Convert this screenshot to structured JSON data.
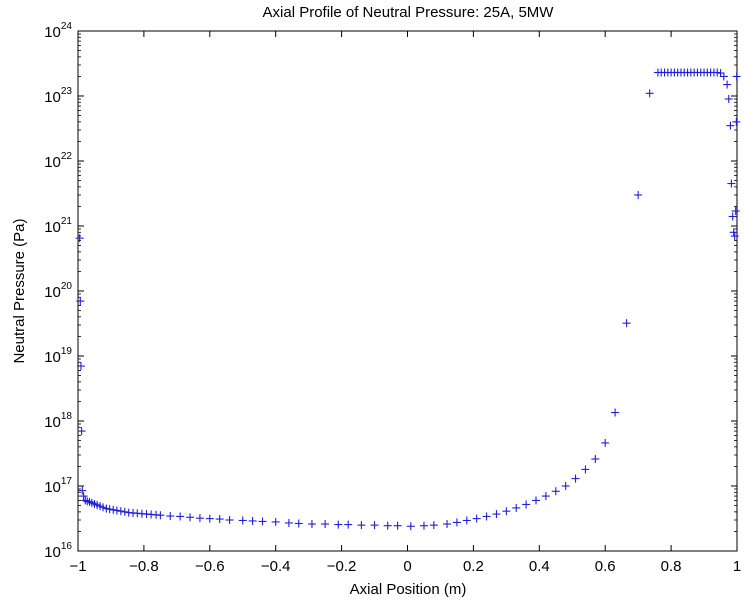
{
  "chart_data": {
    "type": "scatter",
    "title": "Axial Profile of Neutral Pressure: 25A, 5MW",
    "xlabel": "Axial Position (m)",
    "ylabel": "Neutral Pressure (Pa)",
    "xlim": [
      -1,
      1
    ],
    "ylim": [
      1e+16,
      1e+24
    ],
    "yscale": "log",
    "grid": false,
    "marker": "+",
    "marker_color": "#1f1fd8",
    "x_ticks": [
      -1,
      -0.8,
      -0.6,
      -0.4,
      -0.2,
      0,
      0.2,
      0.4,
      0.6,
      0.8,
      1
    ],
    "x_tick_labels": [
      "−1",
      "−0.8",
      "−0.6",
      "−0.4",
      "−0.2",
      "0",
      "0.2",
      "0.4",
      "0.6",
      "0.8",
      "1"
    ],
    "y_tick_exponents": [
      16,
      17,
      18,
      19,
      20,
      21,
      22,
      23,
      24
    ],
    "y_tick_base": "10",
    "series": [
      {
        "points": [
          [
            -0.995,
            6.5e+20
          ],
          [
            -0.993,
            7e+19
          ],
          [
            -0.991,
            7e+18
          ],
          [
            -0.989,
            7e+17
          ],
          [
            -0.987,
            8.5e+16
          ],
          [
            -0.983,
            7e+16
          ],
          [
            -0.978,
            6e+16
          ],
          [
            -0.972,
            5.8e+16
          ],
          [
            -0.965,
            5.7e+16
          ],
          [
            -0.958,
            5.5e+16
          ],
          [
            -0.95,
            5.3e+16
          ],
          [
            -0.942,
            5.1e+16
          ],
          [
            -0.933,
            4.9e+16
          ],
          [
            -0.924,
            4.7e+16
          ],
          [
            -0.914,
            4.5e+16
          ],
          [
            -0.904,
            4.4e+16
          ],
          [
            -0.893,
            4.3e+16
          ],
          [
            -0.882,
            4.2e+16
          ],
          [
            -0.87,
            4.1e+16
          ],
          [
            -0.858,
            4e+16
          ],
          [
            -0.846,
            3.9e+16
          ],
          [
            -0.833,
            3.85e+16
          ],
          [
            -0.82,
            3.8e+16
          ],
          [
            -0.806,
            3.75e+16
          ],
          [
            -0.792,
            3.7e+16
          ],
          [
            -0.778,
            3.65e+16
          ],
          [
            -0.763,
            3.6e+16
          ],
          [
            -0.75,
            3.55e+16
          ],
          [
            -0.72,
            3.45e+16
          ],
          [
            -0.69,
            3.4e+16
          ],
          [
            -0.66,
            3.3e+16
          ],
          [
            -0.63,
            3.2e+16
          ],
          [
            -0.6,
            3.15e+16
          ],
          [
            -0.57,
            3.1e+16
          ],
          [
            -0.54,
            3e+16
          ],
          [
            -0.5,
            2.95e+16
          ],
          [
            -0.47,
            2.9e+16
          ],
          [
            -0.44,
            2.85e+16
          ],
          [
            -0.4,
            2.8e+16
          ],
          [
            -0.36,
            2.7e+16
          ],
          [
            -0.33,
            2.65e+16
          ],
          [
            -0.29,
            2.6e+16
          ],
          [
            -0.25,
            2.6e+16
          ],
          [
            -0.21,
            2.55e+16
          ],
          [
            -0.18,
            2.55e+16
          ],
          [
            -0.14,
            2.5e+16
          ],
          [
            -0.1,
            2.5e+16
          ],
          [
            -0.06,
            2.45e+16
          ],
          [
            -0.03,
            2.45e+16
          ],
          [
            0.01,
            2.4e+16
          ],
          [
            0.05,
            2.45e+16
          ],
          [
            0.08,
            2.5e+16
          ],
          [
            0.12,
            2.6e+16
          ],
          [
            0.15,
            2.75e+16
          ],
          [
            0.18,
            2.95e+16
          ],
          [
            0.21,
            3.15e+16
          ],
          [
            0.24,
            3.4e+16
          ],
          [
            0.27,
            3.7e+16
          ],
          [
            0.3,
            4.1e+16
          ],
          [
            0.33,
            4.6e+16
          ],
          [
            0.36,
            5.2e+16
          ],
          [
            0.39,
            6e+16
          ],
          [
            0.42,
            7e+16
          ],
          [
            0.45,
            8.3e+16
          ],
          [
            0.48,
            1e+17
          ],
          [
            0.51,
            1.3e+17
          ],
          [
            0.54,
            1.8e+17
          ],
          [
            0.57,
            2.6e+17
          ],
          [
            0.6,
            4.6e+17
          ],
          [
            0.63,
            1.35e+18
          ],
          [
            0.665,
            3.2e+19
          ],
          [
            0.7,
            3e+21
          ],
          [
            0.735,
            1.1e+23
          ],
          [
            0.76,
            2.3e+23
          ],
          [
            0.77,
            2.3e+23
          ],
          [
            0.78,
            2.3e+23
          ],
          [
            0.79,
            2.3e+23
          ],
          [
            0.8,
            2.3e+23
          ],
          [
            0.81,
            2.3e+23
          ],
          [
            0.82,
            2.3e+23
          ],
          [
            0.83,
            2.3e+23
          ],
          [
            0.84,
            2.3e+23
          ],
          [
            0.85,
            2.3e+23
          ],
          [
            0.86,
            2.3e+23
          ],
          [
            0.87,
            2.3e+23
          ],
          [
            0.88,
            2.3e+23
          ],
          [
            0.89,
            2.3e+23
          ],
          [
            0.9,
            2.3e+23
          ],
          [
            0.91,
            2.3e+23
          ],
          [
            0.92,
            2.3e+23
          ],
          [
            0.93,
            2.3e+23
          ],
          [
            0.94,
            2.3e+23
          ],
          [
            0.95,
            2.25e+23
          ],
          [
            0.96,
            2e+23
          ],
          [
            0.97,
            1.5e+23
          ],
          [
            0.975,
            9e+22
          ],
          [
            0.98,
            3.5e+22
          ],
          [
            0.983,
            4.5e+21
          ],
          [
            0.987,
            1.4e+21
          ],
          [
            0.99,
            8e+20
          ],
          [
            0.993,
            7e+20
          ],
          [
            0.996,
            1.7e+21
          ],
          [
            0.998,
            4e+22
          ],
          [
            0.999,
            2e+23
          ]
        ]
      }
    ]
  }
}
